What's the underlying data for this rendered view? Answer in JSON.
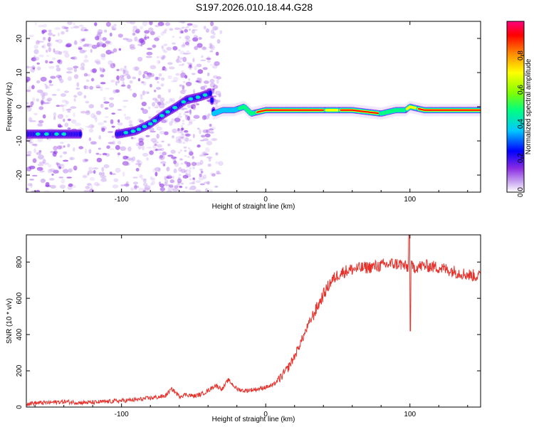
{
  "title": "S197.2026.010.18.44.G28",
  "colors": {
    "snr_line": "#e8302a",
    "background": "#ffffff",
    "colormap": [
      "#e9ddf7",
      "#c9a6f0",
      "#8a2be2",
      "#0000ff",
      "#00c8ff",
      "#00ff80",
      "#80ff00",
      "#ffff00",
      "#ff8000",
      "#ff0000",
      "#ff0080"
    ]
  },
  "chart_data": [
    {
      "type": "heatmap",
      "xlabel": "Height of straight line (km)",
      "ylabel": "Frequency (Hz)",
      "xlim": [
        -166,
        149
      ],
      "ylim": [
        -25,
        25
      ],
      "x_ticks": [
        -100,
        0,
        100
      ],
      "y_ticks": [
        20,
        10,
        0,
        -10,
        -20
      ],
      "grid": false,
      "ridge": {
        "x": [
          -166,
          -150,
          -135,
          -120,
          -102,
          -90,
          -80,
          -70,
          -62,
          -55,
          -45,
          -38,
          -36,
          -30,
          -22,
          -15,
          -10,
          0,
          20,
          40,
          60,
          80,
          90,
          97,
          100,
          110,
          130,
          149
        ],
        "y": [
          -8,
          -8,
          -8,
          -8,
          -8,
          -7,
          -5,
          -2,
          0,
          2,
          3,
          4,
          -2,
          -1,
          -1,
          0,
          -2,
          -1,
          -1,
          -1,
          -1,
          -2,
          -1,
          -1,
          0,
          -1,
          -1,
          -1
        ]
      },
      "colorbar": {
        "label": "Normalized spectral amplitude",
        "range": [
          0,
          1
        ],
        "ticks": [
          0.0,
          0.2,
          0.4,
          0.6,
          0.8
        ]
      }
    },
    {
      "type": "line",
      "xlabel": "Height of straight line (km)",
      "ylabel": "SNR (10 * v/v)",
      "xlim": [
        -166,
        149
      ],
      "ylim": [
        0,
        950
      ],
      "x_ticks": [
        -100,
        0,
        100
      ],
      "y_ticks": [
        0,
        200,
        400,
        600,
        800
      ],
      "grid": false,
      "series": [
        {
          "x": [
            -166,
            -150,
            -140,
            -130,
            -120,
            -110,
            -100,
            -90,
            -80,
            -70,
            -65,
            -60,
            -55,
            -50,
            -45,
            -40,
            -35,
            -30,
            -26,
            -20,
            -15,
            -10,
            -5,
            0,
            5,
            10,
            15,
            20,
            25,
            30,
            35,
            40,
            45,
            50,
            55,
            60,
            70,
            80,
            87,
            93,
            98,
            100,
            102,
            110,
            120,
            130,
            140,
            149
          ],
          "y": [
            20,
            25,
            30,
            25,
            25,
            30,
            35,
            40,
            50,
            60,
            100,
            60,
            70,
            60,
            70,
            90,
            120,
            100,
            150,
            100,
            90,
            95,
            100,
            110,
            120,
            160,
            210,
            280,
            370,
            460,
            540,
            620,
            690,
            730,
            750,
            760,
            770,
            780,
            790,
            790,
            770,
            780,
            770,
            780,
            770,
            750,
            730,
            720
          ]
        }
      ],
      "annotations": [
        {
          "x": 100,
          "y_min": 420,
          "y_max": 950
        }
      ]
    }
  ]
}
